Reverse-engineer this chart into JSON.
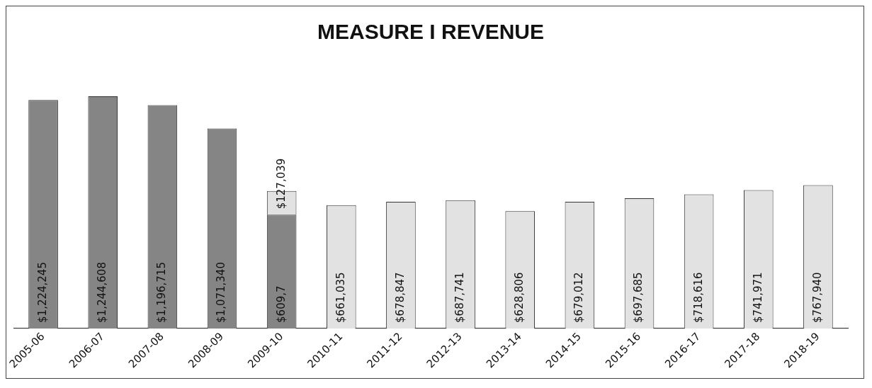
{
  "chart_data": {
    "type": "bar",
    "title": "MEASURE I REVENUE",
    "categories": [
      "2005-06",
      "2006-07",
      "2007-08",
      "2008-09",
      "2009-10",
      "2010-11",
      "2011-12",
      "2012-13",
      "2013-14",
      "2014-15",
      "2015-16",
      "2016-17",
      "2017-18",
      "2018-19"
    ],
    "stacked": true,
    "annotations": [
      {
        "text": "$609,7",
        "x": "2009-10"
      }
    ],
    "grid": false,
    "legend": false,
    "series": [
      {
        "color": "#858585",
        "values": [
          1224245,
          1244608,
          1196715,
          1071340,
          609700,
          null,
          null,
          null,
          null,
          null,
          null,
          null,
          null,
          null
        ],
        "value_labels": [
          "$1,224,245",
          "$1,244,608",
          "$1,196,715",
          "$1,071,340",
          null,
          null,
          null,
          null,
          null,
          null,
          null,
          null,
          null,
          null
        ]
      },
      {
        "color": "#e2e2e2",
        "values": [
          null,
          null,
          null,
          null,
          127039,
          661035,
          678847,
          687741,
          628806,
          679012,
          697685,
          718616,
          741971,
          767940
        ],
        "value_labels": [
          null,
          null,
          null,
          null,
          "$127,039",
          "$661,035",
          "$678,847",
          "$687,741",
          "$628,806",
          "$679,012",
          "$697,685",
          "$718,616",
          "$741,971",
          "$767,940"
        ]
      }
    ]
  }
}
